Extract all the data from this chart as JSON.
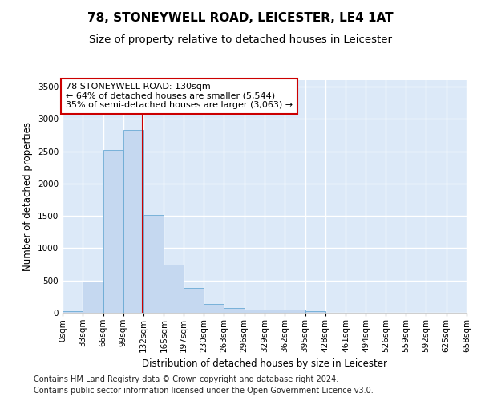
{
  "title1": "78, STONEYWELL ROAD, LEICESTER, LE4 1AT",
  "title2": "Size of property relative to detached houses in Leicester",
  "xlabel": "Distribution of detached houses by size in Leicester",
  "ylabel": "Number of detached properties",
  "bin_edges": [
    0,
    33,
    66,
    99,
    132,
    165,
    197,
    230,
    263,
    296,
    329,
    362,
    395,
    428,
    461,
    494,
    526,
    559,
    592,
    625,
    658
  ],
  "bar_heights": [
    25,
    480,
    2520,
    2830,
    1520,
    750,
    385,
    140,
    70,
    55,
    50,
    55,
    30,
    5,
    0,
    0,
    0,
    0,
    0,
    0
  ],
  "bar_color": "#c5d8f0",
  "bar_edge_color": "#6aaad4",
  "property_size": 130,
  "vline_color": "#cc0000",
  "annotation_text": "78 STONEYWELL ROAD: 130sqm\n← 64% of detached houses are smaller (5,544)\n35% of semi-detached houses are larger (3,063) →",
  "annotation_bbox_color": "#ffffff",
  "annotation_bbox_edge": "#cc0000",
  "ylim": [
    0,
    3600
  ],
  "yticks": [
    0,
    500,
    1000,
    1500,
    2000,
    2500,
    3000,
    3500
  ],
  "xtick_labels": [
    "0sqm",
    "33sqm",
    "66sqm",
    "99sqm",
    "132sqm",
    "165sqm",
    "197sqm",
    "230sqm",
    "263sqm",
    "296sqm",
    "329sqm",
    "362sqm",
    "395sqm",
    "428sqm",
    "461sqm",
    "494sqm",
    "526sqm",
    "559sqm",
    "592sqm",
    "625sqm",
    "658sqm"
  ],
  "footer1": "Contains HM Land Registry data © Crown copyright and database right 2024.",
  "footer2": "Contains public sector information licensed under the Open Government Licence v3.0.",
  "bg_color": "#dce9f8",
  "plot_bg_color": "#dce9f8",
  "fig_bg_color": "#ffffff",
  "grid_color": "#ffffff",
  "title1_fontsize": 11,
  "title2_fontsize": 9.5,
  "axis_label_fontsize": 8.5,
  "tick_fontsize": 7.5,
  "annotation_fontsize": 8,
  "footer_fontsize": 7
}
